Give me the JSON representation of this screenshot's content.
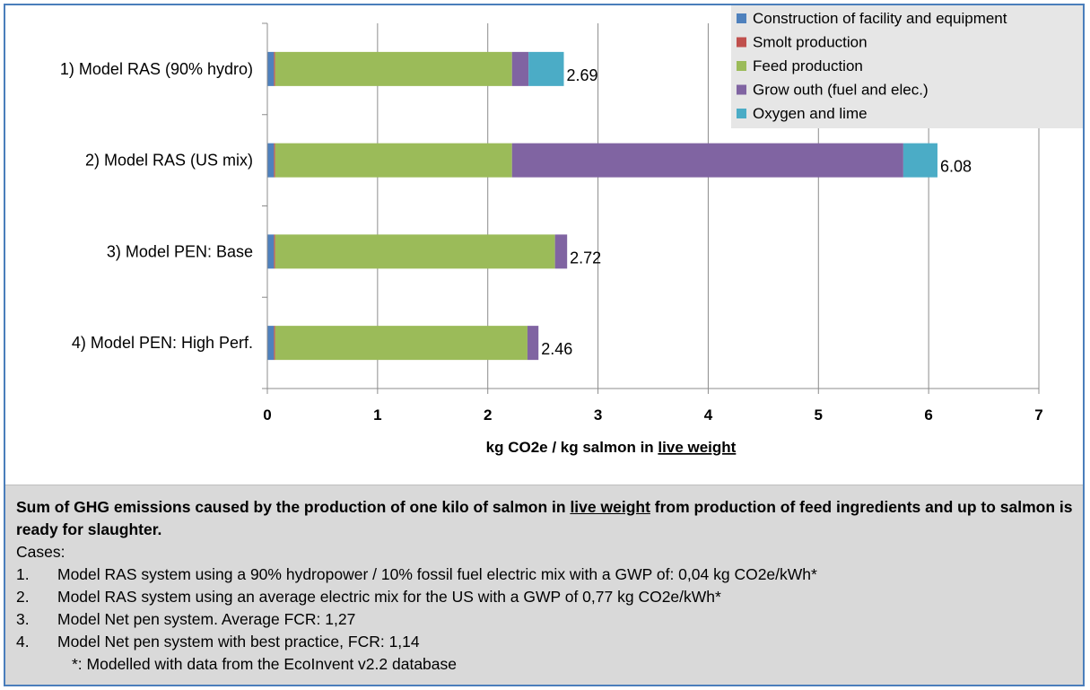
{
  "chart_data": {
    "type": "bar",
    "orientation": "horizontal",
    "stacked": true,
    "categories": [
      "1) Model RAS (90% hydro)",
      "2) Model RAS (US mix)",
      "3) Model PEN: Base",
      "4) Model PEN: High Perf."
    ],
    "series": [
      {
        "name": "Construction of facility and equipment",
        "color": "#4f81bd",
        "values": [
          0.06,
          0.06,
          0.06,
          0.06
        ]
      },
      {
        "name": "Smolt production",
        "color": "#c0504d",
        "values": [
          0.01,
          0.01,
          0.01,
          0.01
        ]
      },
      {
        "name": "Feed production",
        "color": "#9bbb59",
        "values": [
          2.15,
          2.15,
          2.54,
          2.29
        ]
      },
      {
        "name": "Grow outh (fuel and elec.)",
        "color": "#8064a2",
        "values": [
          0.15,
          3.55,
          0.11,
          0.1
        ]
      },
      {
        "name": "Oxygen and lime",
        "color": "#4bacc6",
        "values": [
          0.32,
          0.31,
          0.0,
          0.0
        ]
      }
    ],
    "totals": [
      "2.69",
      "6.08",
      "2.72",
      "2.46"
    ],
    "xlim": [
      0,
      7
    ],
    "xticks": [
      "0",
      "1",
      "2",
      "3",
      "4",
      "5",
      "6",
      "7"
    ],
    "xlabel_pre": "kg CO2e / kg salmon in ",
    "xlabel_underlined": "live weight",
    "grid": "vertical",
    "legend_position": "top-right"
  },
  "caption": {
    "title_pre": "Sum of GHG emissions caused   by the production of one kilo of salmon in ",
    "title_underlined": "live weight",
    "title_post": " from production of feed ingredients and up to salmon is ready for slaughter.",
    "cases_label": "Cases:",
    "items": [
      {
        "num": "1.",
        "text": "Model RAS system using a 90% hydropower / 10% fossil fuel electric mix with a GWP of: 0,04 kg CO2e/kWh*"
      },
      {
        "num": "2.",
        "text": "Model RAS system using an average electric mix for the US with a GWP of 0,77 kg CO2e/kWh*"
      },
      {
        "num": "3.",
        "text": "Model Net pen system. Average FCR: 1,27"
      },
      {
        "num": "4.",
        "text": "Model Net pen system with best practice, FCR: 1,14"
      }
    ],
    "footnote": "*: Modelled with data from the EcoInvent v2.2 database"
  }
}
